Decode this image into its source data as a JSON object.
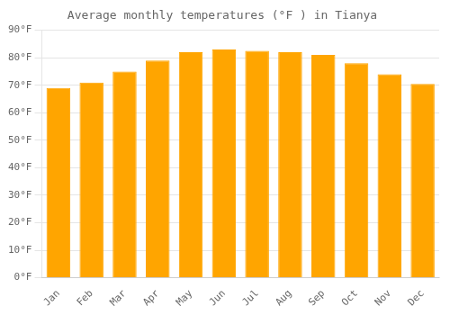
{
  "chart_data": {
    "type": "bar",
    "title": "Average monthly temperatures (°F ) in Tianya",
    "categories": [
      "Jan",
      "Feb",
      "Mar",
      "Apr",
      "May",
      "Jun",
      "Jul",
      "Aug",
      "Sep",
      "Oct",
      "Nov",
      "Dec"
    ],
    "values": [
      69,
      71,
      75,
      79,
      82,
      83,
      82.5,
      82,
      81,
      78,
      74,
      70.5
    ],
    "color": "#FFA500",
    "ylim": [
      0,
      90
    ],
    "yticks": [
      {
        "value": 0,
        "label": "0°F"
      },
      {
        "value": 10,
        "label": "10°F"
      },
      {
        "value": 20,
        "label": "20°F"
      },
      {
        "value": 30,
        "label": "30°F"
      },
      {
        "value": 40,
        "label": "40°F"
      },
      {
        "value": 50,
        "label": "50°F"
      },
      {
        "value": 60,
        "label": "60°F"
      },
      {
        "value": 70,
        "label": "70°F"
      },
      {
        "value": 80,
        "label": "80°F"
      },
      {
        "value": 90,
        "label": "90°F"
      }
    ],
    "grid": true
  }
}
